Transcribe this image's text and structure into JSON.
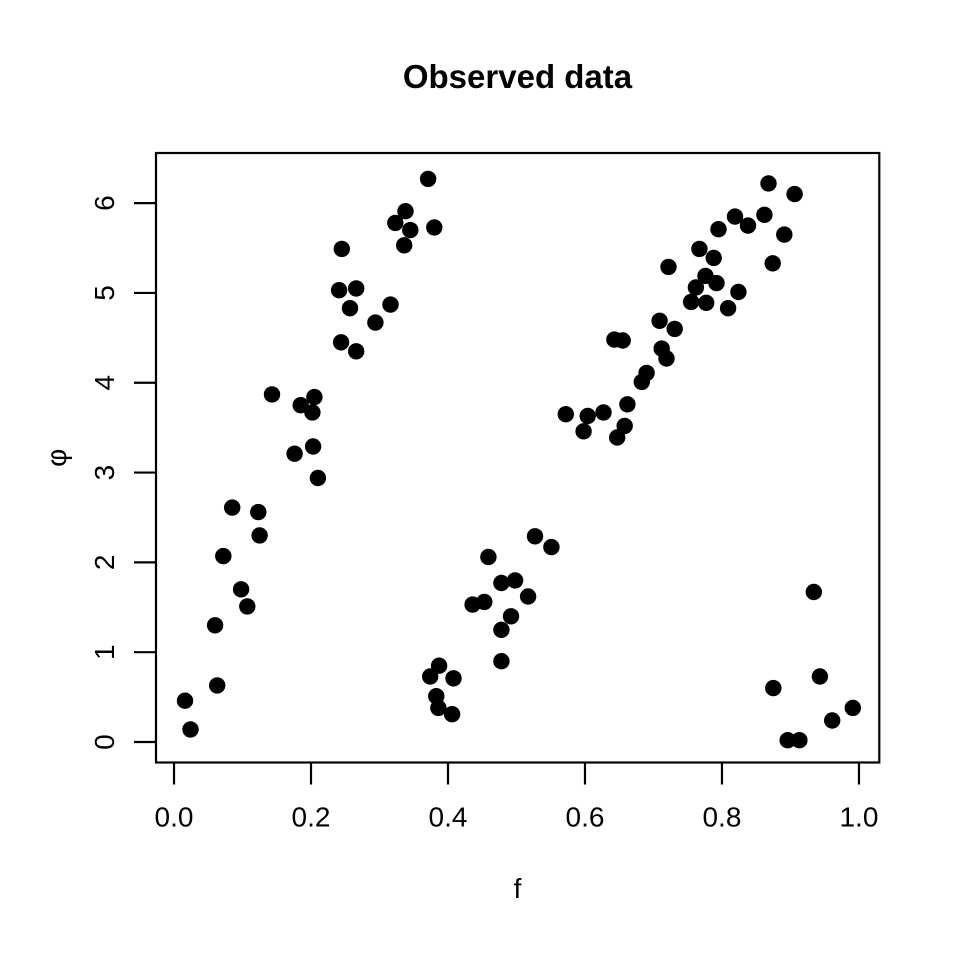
{
  "chart_data": {
    "type": "scatter",
    "title": "Observed data",
    "xlabel": "f",
    "ylabel": "φ",
    "xlim": [
      -0.0263,
      1.0297
    ],
    "ylim": [
      -0.228,
      6.558
    ],
    "x_tick_values": [
      0.0,
      0.2,
      0.4,
      0.6,
      0.8,
      1.0
    ],
    "x_tick_labels": [
      "0.0",
      "0.2",
      "0.4",
      "0.6",
      "0.8",
      "1.0"
    ],
    "y_tick_values": [
      0,
      1,
      2,
      3,
      4,
      5,
      6
    ],
    "y_tick_labels": [
      "0",
      "1",
      "2",
      "3",
      "4",
      "5",
      "6"
    ],
    "grid": false,
    "legend": null,
    "marker": {
      "shape": "filled-circle",
      "color": "#000000",
      "radius_px": 8.2
    },
    "axis_color": "#000000",
    "background": "#ffffff",
    "points": [
      [
        0.371,
        6.27
      ],
      [
        0.38,
        5.73
      ],
      [
        0.338,
        5.91
      ],
      [
        0.323,
        5.78
      ],
      [
        0.345,
        5.7
      ],
      [
        0.336,
        5.53
      ],
      [
        0.245,
        5.49
      ],
      [
        0.241,
        5.03
      ],
      [
        0.266,
        5.05
      ],
      [
        0.257,
        4.83
      ],
      [
        0.316,
        4.87
      ],
      [
        0.294,
        4.67
      ],
      [
        0.244,
        4.45
      ],
      [
        0.266,
        4.35
      ],
      [
        0.143,
        3.87
      ],
      [
        0.205,
        3.84
      ],
      [
        0.185,
        3.75
      ],
      [
        0.202,
        3.67
      ],
      [
        0.176,
        3.21
      ],
      [
        0.203,
        3.29
      ],
      [
        0.21,
        2.94
      ],
      [
        0.085,
        2.61
      ],
      [
        0.123,
        2.56
      ],
      [
        0.125,
        2.3
      ],
      [
        0.072,
        2.07
      ],
      [
        0.098,
        1.7
      ],
      [
        0.107,
        1.51
      ],
      [
        0.06,
        1.3
      ],
      [
        0.063,
        0.63
      ],
      [
        0.016,
        0.46
      ],
      [
        0.024,
        0.14
      ],
      [
        0.527,
        2.29
      ],
      [
        0.551,
        2.17
      ],
      [
        0.459,
        2.06
      ],
      [
        0.478,
        1.77
      ],
      [
        0.498,
        1.8
      ],
      [
        0.517,
        1.62
      ],
      [
        0.436,
        1.53
      ],
      [
        0.453,
        1.56
      ],
      [
        0.492,
        1.4
      ],
      [
        0.478,
        1.25
      ],
      [
        0.478,
        0.9
      ],
      [
        0.387,
        0.85
      ],
      [
        0.374,
        0.73
      ],
      [
        0.408,
        0.71
      ],
      [
        0.383,
        0.51
      ],
      [
        0.386,
        0.38
      ],
      [
        0.406,
        0.31
      ],
      [
        0.572,
        3.65
      ],
      [
        0.604,
        3.63
      ],
      [
        0.627,
        3.67
      ],
      [
        0.598,
        3.46
      ],
      [
        0.662,
        3.76
      ],
      [
        0.658,
        3.52
      ],
      [
        0.647,
        3.39
      ],
      [
        0.643,
        4.48
      ],
      [
        0.655,
        4.47
      ],
      [
        0.683,
        4.01
      ],
      [
        0.69,
        4.11
      ],
      [
        0.712,
        4.38
      ],
      [
        0.719,
        4.27
      ],
      [
        0.709,
        4.69
      ],
      [
        0.731,
        4.6
      ],
      [
        0.722,
        5.29
      ],
      [
        0.755,
        4.9
      ],
      [
        0.762,
        5.06
      ],
      [
        0.767,
        5.49
      ],
      [
        0.776,
        5.19
      ],
      [
        0.777,
        4.89
      ],
      [
        0.788,
        5.39
      ],
      [
        0.792,
        5.11
      ],
      [
        0.795,
        5.71
      ],
      [
        0.809,
        4.83
      ],
      [
        0.819,
        5.85
      ],
      [
        0.824,
        5.01
      ],
      [
        0.838,
        5.75
      ],
      [
        0.862,
        5.87
      ],
      [
        0.868,
        6.22
      ],
      [
        0.874,
        5.33
      ],
      [
        0.891,
        5.65
      ],
      [
        0.906,
        6.1
      ],
      [
        0.934,
        1.67
      ],
      [
        0.943,
        0.73
      ],
      [
        0.875,
        0.6
      ],
      [
        0.991,
        0.38
      ],
      [
        0.961,
        0.24
      ],
      [
        0.896,
        0.02
      ],
      [
        0.913,
        0.02
      ]
    ]
  }
}
